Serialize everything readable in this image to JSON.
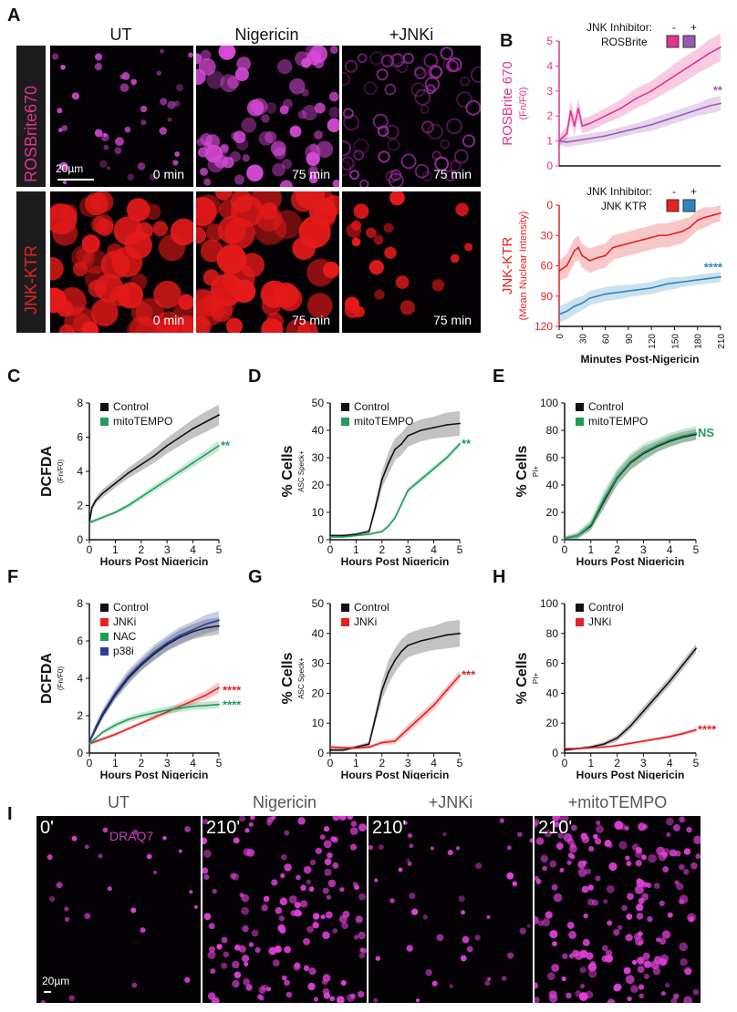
{
  "colors": {
    "magenta": "#e0338f",
    "purple": "#9b59b6",
    "red": "#e52222",
    "blue": "#2e86c1",
    "green": "#1f9e5a",
    "black": "#111111",
    "navy": "#2c3e99",
    "dapi": "#e040d8"
  },
  "panel_letters": {
    "A": "A",
    "B": "B",
    "C": "C",
    "D": "D",
    "E": "E",
    "F": "F",
    "G": "G",
    "H": "H",
    "I": "I"
  },
  "panel_A": {
    "columns": [
      "UT",
      "Nigericin",
      "+JNKi"
    ],
    "rows": [
      "ROSBrite670",
      "JNK-KTR"
    ],
    "times": [
      "0 min",
      "75 min",
      "75 min",
      "0 min",
      "75 min",
      "75 min"
    ],
    "scale_bar": "20µm"
  },
  "panel_I": {
    "columns": [
      "UT",
      "Nigericin",
      "+JNKi",
      "+mitoTEMPO"
    ],
    "times": [
      "0'",
      "210'",
      "210'",
      "210'"
    ],
    "stain": "DRAQ7",
    "scale_bar": "20µm"
  },
  "chart_data": [
    {
      "id": "B-top",
      "type": "line",
      "ylabel": "ROSBrite 670",
      "ylabel_sub": "(Fn/F0)",
      "legend_title": "JNK Inhibitor:",
      "legend_signs": [
        "-",
        "+"
      ],
      "legend_name": "ROSBrite",
      "ylim": [
        0,
        5
      ],
      "yticks": [
        0,
        1,
        2,
        3,
        4,
        5
      ],
      "xlim": [
        0,
        210
      ],
      "significance": "**",
      "series": [
        {
          "name": "-",
          "color": "magenta",
          "x": [
            0,
            10,
            15,
            20,
            25,
            30,
            40,
            60,
            80,
            100,
            120,
            140,
            160,
            180,
            195,
            210
          ],
          "y": [
            1.0,
            1.3,
            2.2,
            1.6,
            2.3,
            1.6,
            1.7,
            2.0,
            2.3,
            2.7,
            3.0,
            3.4,
            3.8,
            4.2,
            4.5,
            4.75
          ],
          "err": [
            0.2,
            0.3,
            0.4,
            0.4,
            0.4,
            0.3,
            0.3,
            0.3,
            0.35,
            0.4,
            0.4,
            0.45,
            0.5,
            0.5,
            0.55,
            0.55
          ]
        },
        {
          "name": "+",
          "color": "purple",
          "x": [
            0,
            10,
            20,
            30,
            40,
            60,
            80,
            100,
            120,
            140,
            160,
            180,
            195,
            210
          ],
          "y": [
            1.0,
            0.95,
            1.0,
            1.05,
            1.1,
            1.2,
            1.35,
            1.5,
            1.65,
            1.85,
            2.05,
            2.25,
            2.4,
            2.5
          ],
          "err": [
            0.15,
            0.2,
            0.2,
            0.2,
            0.2,
            0.2,
            0.2,
            0.2,
            0.25,
            0.25,
            0.25,
            0.25,
            0.3,
            0.3
          ]
        }
      ]
    },
    {
      "id": "B-bottom",
      "type": "line",
      "ylabel": "JNK-KTR",
      "ylabel_sub": "(Mean Nuclear Intensity)",
      "legend_title": "JNK Inhibitor:",
      "legend_signs": [
        "-",
        "+"
      ],
      "legend_name": "JNK KTR",
      "ylim": [
        120,
        0
      ],
      "yticks": [
        0,
        30,
        60,
        90,
        120
      ],
      "xlim": [
        0,
        210
      ],
      "xticks": [
        0,
        30,
        60,
        90,
        120,
        150,
        180,
        210
      ],
      "xlabel": "Minutes Post-Nigericin",
      "significance": "****",
      "series": [
        {
          "name": "-",
          "color": "red",
          "x": [
            0,
            10,
            20,
            25,
            30,
            40,
            50,
            60,
            70,
            80,
            90,
            100,
            110,
            120,
            130,
            140,
            150,
            160,
            170,
            180,
            190,
            200,
            210
          ],
          "y": [
            65,
            60,
            45,
            42,
            50,
            55,
            52,
            50,
            42,
            40,
            38,
            36,
            34,
            32,
            30,
            30,
            28,
            26,
            22,
            15,
            12,
            10,
            8
          ],
          "err": [
            10,
            12,
            12,
            12,
            12,
            12,
            12,
            12,
            12,
            12,
            12,
            12,
            12,
            12,
            12,
            12,
            12,
            12,
            10,
            10,
            10,
            8,
            8
          ]
        },
        {
          "name": "+",
          "color": "blue",
          "x": [
            0,
            10,
            20,
            30,
            40,
            50,
            60,
            70,
            80,
            90,
            100,
            110,
            120,
            130,
            140,
            150,
            160,
            170,
            180,
            190,
            200,
            210
          ],
          "y": [
            108,
            105,
            100,
            97,
            92,
            90,
            88,
            87,
            86,
            85,
            84,
            83,
            82,
            80,
            78,
            77,
            76,
            75,
            74,
            73,
            72,
            71
          ],
          "err": [
            8,
            8,
            8,
            7,
            7,
            7,
            7,
            7,
            7,
            6,
            6,
            6,
            6,
            6,
            6,
            6,
            5,
            5,
            5,
            5,
            5,
            5
          ]
        }
      ]
    },
    {
      "id": "C",
      "type": "line",
      "ylabel": "DCFDA",
      "ylabel_sub": "(Fn/F0)",
      "ylim": [
        0,
        8
      ],
      "yticks": [
        0,
        2,
        4,
        6,
        8
      ],
      "xlim": [
        0,
        5
      ],
      "xticks": [
        0,
        1,
        2,
        3,
        4,
        5
      ],
      "xlabel": "Hours Post Nigericin",
      "significance": "**",
      "sig_color": "green",
      "series": [
        {
          "name": "Control",
          "color": "black",
          "x": [
            0,
            0.1,
            0.25,
            0.5,
            1,
            1.5,
            2,
            2.5,
            3,
            3.5,
            4,
            4.5,
            5
          ],
          "y": [
            1.0,
            1.9,
            2.3,
            2.7,
            3.3,
            3.9,
            4.4,
            4.9,
            5.5,
            6.0,
            6.5,
            6.9,
            7.3
          ],
          "err": [
            0.1,
            0.2,
            0.2,
            0.25,
            0.25,
            0.3,
            0.35,
            0.4,
            0.45,
            0.5,
            0.55,
            0.6,
            0.6
          ]
        },
        {
          "name": "mitoTEMPO",
          "color": "green",
          "x": [
            0,
            0.5,
            1,
            1.5,
            2,
            2.5,
            3,
            3.5,
            4,
            4.5,
            5
          ],
          "y": [
            1.0,
            1.3,
            1.6,
            2.0,
            2.5,
            3.0,
            3.5,
            4.0,
            4.5,
            5.0,
            5.5
          ],
          "err": [
            0.1,
            0.1,
            0.1,
            0.15,
            0.15,
            0.2,
            0.2,
            0.2,
            0.25,
            0.25,
            0.3
          ]
        }
      ]
    },
    {
      "id": "D",
      "type": "line",
      "ylabel": "% Cells",
      "ylabel_sub": "ASC Speck+",
      "ylim": [
        0,
        50
      ],
      "yticks": [
        0,
        10,
        20,
        30,
        40,
        50
      ],
      "xlim": [
        0,
        5
      ],
      "xticks": [
        0,
        1,
        2,
        3,
        4,
        5
      ],
      "xlabel": "Hours Post Nigericin",
      "significance": "**",
      "sig_color": "green",
      "series": [
        {
          "name": "Control",
          "color": "black",
          "x": [
            0,
            0.5,
            1,
            1.5,
            1.75,
            2,
            2.25,
            2.5,
            2.75,
            3,
            3.5,
            4,
            4.5,
            5
          ],
          "y": [
            1.5,
            1.5,
            2,
            3,
            12,
            22,
            28,
            33,
            35,
            38,
            40,
            41,
            42,
            42.5
          ],
          "err": [
            0.5,
            0.5,
            0.5,
            0.8,
            2,
            3,
            4,
            4,
            4,
            4,
            4,
            4,
            4.5,
            4.5
          ]
        },
        {
          "name": "mitoTEMPO",
          "color": "green",
          "x": [
            0,
            0.5,
            1,
            1.5,
            2,
            2.25,
            2.5,
            2.75,
            3,
            3.5,
            4,
            4.5,
            5
          ],
          "y": [
            1,
            1,
            1.5,
            2,
            3,
            5,
            8,
            13,
            18,
            22,
            26,
            30,
            35
          ],
          "err": [
            0.3,
            0.3,
            0.3,
            0.4,
            0.5,
            0.6,
            0.8,
            1,
            1,
            1,
            1,
            1,
            1
          ]
        }
      ]
    },
    {
      "id": "E",
      "type": "line",
      "ylabel": "% Cells",
      "ylabel_sub": "PI+",
      "ylim": [
        0,
        100
      ],
      "yticks": [
        0,
        20,
        40,
        60,
        80,
        100
      ],
      "xlim": [
        0,
        5
      ],
      "xticks": [
        0,
        1,
        2,
        3,
        4,
        5
      ],
      "xlabel": "Hours Post Nigericin",
      "significance": "NS",
      "sig_color": "green",
      "series": [
        {
          "name": "Control",
          "color": "black",
          "x": [
            0,
            0.5,
            1,
            1.5,
            2,
            2.5,
            3,
            3.5,
            4,
            4.5,
            5
          ],
          "y": [
            1,
            3,
            10,
            28,
            45,
            56,
            63,
            68,
            72,
            75,
            77
          ],
          "err": [
            1,
            2,
            3,
            5,
            5,
            5,
            5,
            4,
            4,
            4,
            4
          ]
        },
        {
          "name": "mitoTEMPO",
          "color": "green",
          "x": [
            0,
            0.5,
            1,
            1.5,
            2,
            2.5,
            3,
            3.5,
            4,
            4.5,
            5
          ],
          "y": [
            1,
            3,
            11,
            30,
            46,
            57,
            64,
            69,
            73,
            76,
            78
          ],
          "err": [
            1.5,
            2.5,
            4,
            6,
            6,
            6,
            6,
            5,
            5,
            5,
            5
          ]
        }
      ]
    },
    {
      "id": "F",
      "type": "line",
      "ylabel": "DCFDA",
      "ylabel_sub": "(Fn/F0)",
      "ylim": [
        0,
        8
      ],
      "yticks": [
        0,
        2,
        4,
        6,
        8
      ],
      "xlim": [
        0,
        5
      ],
      "xticks": [
        0,
        1,
        2,
        3,
        4,
        5
      ],
      "xlabel": "Hours Post Nigericin",
      "annotations": [
        {
          "text": "****",
          "color": "red",
          "y": 3.4
        },
        {
          "text": "****",
          "color": "green",
          "y": 2.6
        }
      ],
      "series": [
        {
          "name": "Control",
          "color": "black",
          "x": [
            0,
            0.25,
            0.5,
            1,
            1.5,
            2,
            2.5,
            3,
            3.5,
            4,
            4.5,
            5
          ],
          "y": [
            0.6,
            1.3,
            2.0,
            3.1,
            4.0,
            4.7,
            5.3,
            5.8,
            6.2,
            6.5,
            6.7,
            6.8
          ],
          "err": [
            0.1,
            0.15,
            0.2,
            0.25,
            0.3,
            0.3,
            0.35,
            0.35,
            0.4,
            0.4,
            0.45,
            0.45
          ]
        },
        {
          "name": "JNKi",
          "color": "red",
          "x": [
            0,
            1,
            2,
            3,
            3.5,
            4,
            4.5,
            5
          ],
          "y": [
            0.5,
            1.0,
            1.6,
            2.2,
            2.5,
            2.8,
            3.1,
            3.5
          ],
          "err": [
            0.1,
            0.1,
            0.1,
            0.15,
            0.2,
            0.2,
            0.25,
            0.3
          ]
        },
        {
          "name": "NAC",
          "color": "green",
          "x": [
            0,
            0.5,
            1,
            1.5,
            2,
            2.5,
            3,
            3.5,
            4,
            4.5,
            5
          ],
          "y": [
            0.5,
            1.1,
            1.5,
            1.8,
            2.0,
            2.15,
            2.3,
            2.4,
            2.5,
            2.55,
            2.6
          ],
          "err": [
            0.1,
            0.1,
            0.15,
            0.15,
            0.15,
            0.2,
            0.2,
            0.2,
            0.2,
            0.2,
            0.2
          ]
        },
        {
          "name": "p38i",
          "color": "navy",
          "x": [
            0,
            0.25,
            0.5,
            1,
            1.5,
            2,
            2.5,
            3,
            3.5,
            4,
            4.5,
            5
          ],
          "y": [
            0.6,
            1.4,
            2.1,
            3.2,
            4.1,
            4.8,
            5.4,
            5.9,
            6.3,
            6.6,
            6.9,
            7.1
          ],
          "err": [
            0.15,
            0.2,
            0.25,
            0.3,
            0.35,
            0.35,
            0.4,
            0.4,
            0.45,
            0.45,
            0.5,
            0.5
          ]
        }
      ]
    },
    {
      "id": "G",
      "type": "line",
      "ylabel": "% Cells",
      "ylabel_sub": "ASC Speck+",
      "ylim": [
        0,
        50
      ],
      "yticks": [
        0,
        10,
        20,
        30,
        40,
        50
      ],
      "xlim": [
        0,
        5
      ],
      "xticks": [
        0,
        1,
        2,
        3,
        4,
        5
      ],
      "xlabel": "Hours Post Nigericin",
      "significance": "***",
      "sig_color": "red",
      "series": [
        {
          "name": "Control",
          "color": "black",
          "x": [
            0,
            0.5,
            1,
            1.5,
            1.75,
            2,
            2.25,
            2.5,
            2.75,
            3,
            3.5,
            4,
            4.5,
            5
          ],
          "y": [
            1,
            1,
            2,
            3,
            12,
            21,
            27,
            31,
            34,
            36,
            37.5,
            38.5,
            39.5,
            40
          ],
          "err": [
            0.5,
            0.5,
            0.5,
            0.8,
            2,
            3,
            4,
            4,
            4,
            4,
            4,
            4,
            4.5,
            4.5
          ]
        },
        {
          "name": "JNKi",
          "color": "red",
          "x": [
            0,
            0.5,
            1,
            1.5,
            2,
            2.5,
            2.75,
            3,
            3.5,
            4,
            4.5,
            5
          ],
          "y": [
            2,
            1.8,
            1.7,
            2,
            3.5,
            4,
            6,
            8,
            12,
            16,
            21,
            26
          ],
          "err": [
            0.5,
            0.5,
            0.5,
            0.5,
            0.8,
            1,
            1.2,
            1.5,
            1.5,
            1.5,
            1.5,
            1.5
          ]
        }
      ]
    },
    {
      "id": "H",
      "type": "line",
      "ylabel": "% Cells",
      "ylabel_sub": "PI+",
      "ylim": [
        0,
        100
      ],
      "yticks": [
        0,
        20,
        40,
        60,
        80,
        100
      ],
      "xlim": [
        0,
        5
      ],
      "xticks": [
        0,
        1,
        2,
        3,
        4,
        5
      ],
      "xlabel": "Hours Post Nigericin",
      "significance": "****",
      "sig_color": "red",
      "series": [
        {
          "name": "Control",
          "color": "black",
          "x": [
            0,
            0.5,
            1,
            1.5,
            2,
            2.5,
            3,
            3.5,
            4,
            4.5,
            5
          ],
          "y": [
            2,
            3,
            4,
            6,
            10,
            18,
            28,
            38,
            48,
            59,
            70
          ],
          "err": [
            0.5,
            0.8,
            1,
            1.5,
            2,
            2.5,
            3,
            3,
            3,
            3,
            3
          ]
        },
        {
          "name": "JNKi",
          "color": "red",
          "x": [
            0,
            0.5,
            1,
            1.5,
            2,
            2.5,
            3,
            3.5,
            4,
            4.5,
            5
          ],
          "y": [
            3,
            3,
            3.5,
            4,
            5,
            6.5,
            8,
            9.5,
            11,
            13,
            15.5
          ],
          "err": [
            0.5,
            0.5,
            0.5,
            0.5,
            0.8,
            1,
            1,
            1,
            1.2,
            1.2,
            1.5
          ]
        }
      ]
    }
  ]
}
